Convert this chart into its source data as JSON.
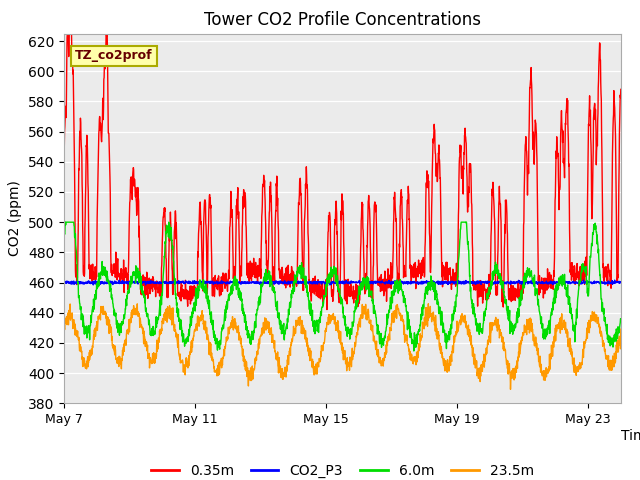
{
  "title": "Tower CO2 Profile Concentrations",
  "xlabel": "Time",
  "ylabel": "CO2 (ppm)",
  "ylim": [
    380,
    625
  ],
  "yticks": [
    380,
    400,
    420,
    440,
    460,
    480,
    500,
    520,
    540,
    560,
    580,
    600,
    620
  ],
  "xtick_days": [
    7,
    11,
    15,
    19,
    23
  ],
  "xtick_labels": [
    "May 7",
    "May 11",
    "May 15",
    "May 19",
    "May 23"
  ],
  "annotation_text": "TZ_co2prof",
  "bg_color": "#ebebeb",
  "series": {
    "0.35m": {
      "color": "#ff0000",
      "linewidth": 1.0
    },
    "CO2_P3": {
      "color": "#0000ff",
      "linewidth": 1.0
    },
    "6.0m": {
      "color": "#00dd00",
      "linewidth": 1.0
    },
    "23.5m": {
      "color": "#ff9900",
      "linewidth": 1.0
    }
  },
  "n_points": 2000
}
